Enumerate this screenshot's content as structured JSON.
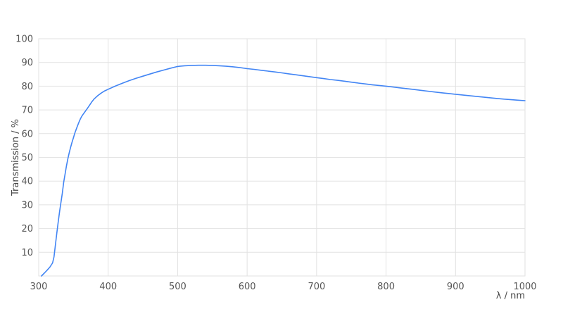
{
  "colors": {
    "background": "#ffffff",
    "gridline": "#e2e2e2",
    "tick_label": "#565656",
    "axis_title": "#454545",
    "line": "#4285f4"
  },
  "chart_data": {
    "type": "line",
    "title": "",
    "xlabel": "λ / nm",
    "ylabel": "Transmission / %",
    "xlim": [
      300,
      1000
    ],
    "ylim": [
      0,
      100
    ],
    "x_ticks": [
      300,
      400,
      500,
      600,
      700,
      800,
      900,
      1000
    ],
    "y_ticks": [
      10,
      20,
      30,
      40,
      50,
      60,
      70,
      80,
      90,
      100
    ],
    "grid": true,
    "legend_position": "none",
    "series": [
      {
        "name": "Transmission",
        "color": "#4285f4",
        "x": [
          304,
          308,
          312,
          316,
          320,
          322,
          324,
          326,
          328,
          330,
          332,
          334,
          336,
          338,
          340,
          342,
          344,
          346,
          348,
          350,
          352,
          354,
          356,
          358,
          360,
          362,
          364,
          366,
          368,
          370,
          373,
          376,
          380,
          385,
          390,
          395,
          400,
          410,
          420,
          430,
          440,
          450,
          460,
          470,
          480,
          490,
          500,
          510,
          520,
          530,
          540,
          550,
          560,
          570,
          580,
          590,
          600,
          610,
          620,
          630,
          640,
          650,
          660,
          670,
          680,
          690,
          700,
          710,
          720,
          730,
          740,
          750,
          760,
          770,
          780,
          790,
          800,
          810,
          820,
          830,
          840,
          850,
          860,
          870,
          880,
          890,
          900,
          910,
          920,
          930,
          940,
          950,
          960,
          970,
          980,
          990,
          1000
        ],
        "y": [
          0,
          1.2,
          2.4,
          3.7,
          5.5,
          8,
          13,
          18,
          22.5,
          27,
          31,
          35,
          39.5,
          43,
          46.5,
          49.5,
          52,
          54.3,
          56.4,
          58.3,
          60.2,
          61.8,
          63.4,
          64.9,
          66.2,
          67.3,
          68.2,
          69,
          69.8,
          70.6,
          71.9,
          73.2,
          74.7,
          76,
          77.1,
          78,
          78.7,
          80,
          81.2,
          82.3,
          83.3,
          84.2,
          85.1,
          86,
          86.8,
          87.6,
          88.3,
          88.6,
          88.75,
          88.8,
          88.8,
          88.75,
          88.6,
          88.4,
          88.15,
          87.8,
          87.4,
          87.1,
          86.7,
          86.35,
          86,
          85.6,
          85.2,
          84.8,
          84.4,
          84,
          83.6,
          83.2,
          82.8,
          82.45,
          82.1,
          81.7,
          81.3,
          80.95,
          80.6,
          80.3,
          80,
          79.65,
          79.3,
          78.95,
          78.6,
          78.25,
          77.9,
          77.55,
          77.2,
          76.9,
          76.6,
          76.3,
          76,
          75.7,
          75.4,
          75.1,
          74.8,
          74.55,
          74.3,
          74.1,
          73.9
        ]
      }
    ]
  }
}
